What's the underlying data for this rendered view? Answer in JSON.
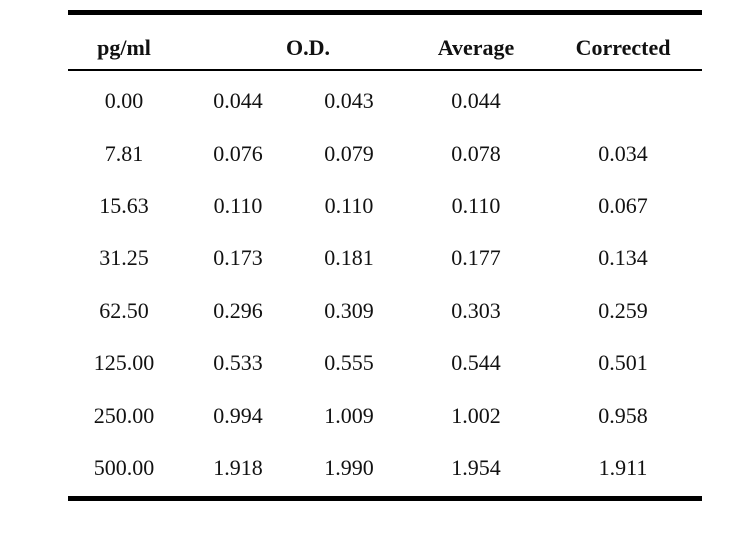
{
  "table": {
    "headers": {
      "pg": "pg/ml",
      "od": "O.D.",
      "average": "Average",
      "corrected": "Corrected"
    },
    "rows": [
      {
        "pg": "0.00",
        "od1": "0.044",
        "od2": "0.043",
        "average": "0.044",
        "corrected": ""
      },
      {
        "pg": "7.81",
        "od1": "0.076",
        "od2": "0.079",
        "average": "0.078",
        "corrected": "0.034"
      },
      {
        "pg": "15.63",
        "od1": "0.110",
        "od2": "0.110",
        "average": "0.110",
        "corrected": "0.067"
      },
      {
        "pg": "31.25",
        "od1": "0.173",
        "od2": "0.181",
        "average": "0.177",
        "corrected": "0.134"
      },
      {
        "pg": "62.50",
        "od1": "0.296",
        "od2": "0.309",
        "average": "0.303",
        "corrected": "0.259"
      },
      {
        "pg": "125.00",
        "od1": "0.533",
        "od2": "0.555",
        "average": "0.544",
        "corrected": "0.501"
      },
      {
        "pg": "250.00",
        "od1": "0.994",
        "od2": "1.009",
        "average": "1.002",
        "corrected": "0.958"
      },
      {
        "pg": "500.00",
        "od1": "1.918",
        "od2": "1.990",
        "average": "1.954",
        "corrected": "1.911"
      }
    ]
  }
}
